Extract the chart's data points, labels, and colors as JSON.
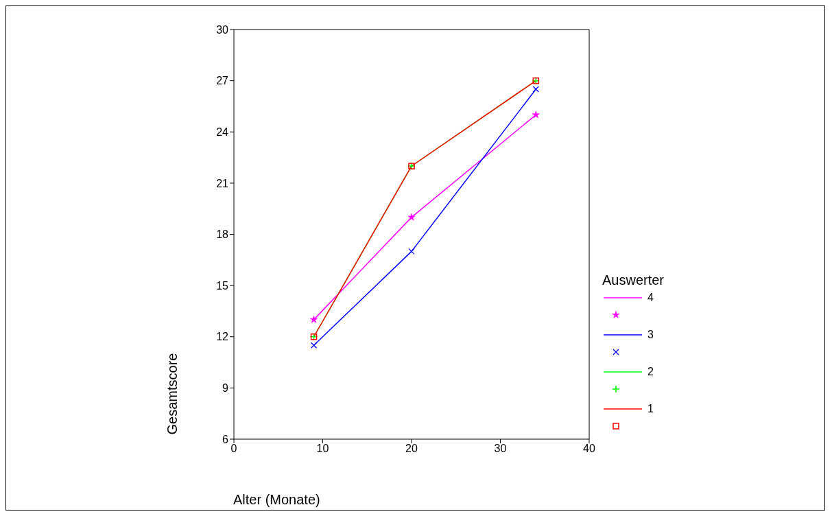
{
  "chart_data": {
    "type": "line",
    "xlabel": "Alter (Monate)",
    "ylabel": "Gesamtscore",
    "legend_title": "Auswerter",
    "x": [
      9,
      20,
      34
    ],
    "series": [
      {
        "name": "4",
        "color": "#ff00ff",
        "marker": "star",
        "values": [
          13,
          19,
          25
        ]
      },
      {
        "name": "3",
        "color": "#0000ff",
        "marker": "x",
        "values": [
          11.5,
          17,
          26.5
        ]
      },
      {
        "name": "2",
        "color": "#00ff00",
        "marker": "plus",
        "values": [
          12,
          22,
          27
        ]
      },
      {
        "name": "1",
        "color": "#ff0000",
        "marker": "square",
        "values": [
          12,
          22,
          27
        ]
      }
    ],
    "xlim": [
      0,
      40
    ],
    "xticks": [
      0,
      10,
      20,
      30,
      40
    ],
    "ylim": [
      6,
      30
    ],
    "yticks": [
      6,
      9,
      12,
      15,
      18,
      21,
      24,
      27,
      30
    ],
    "grid": false,
    "legend": "right",
    "line_style": "solid"
  }
}
